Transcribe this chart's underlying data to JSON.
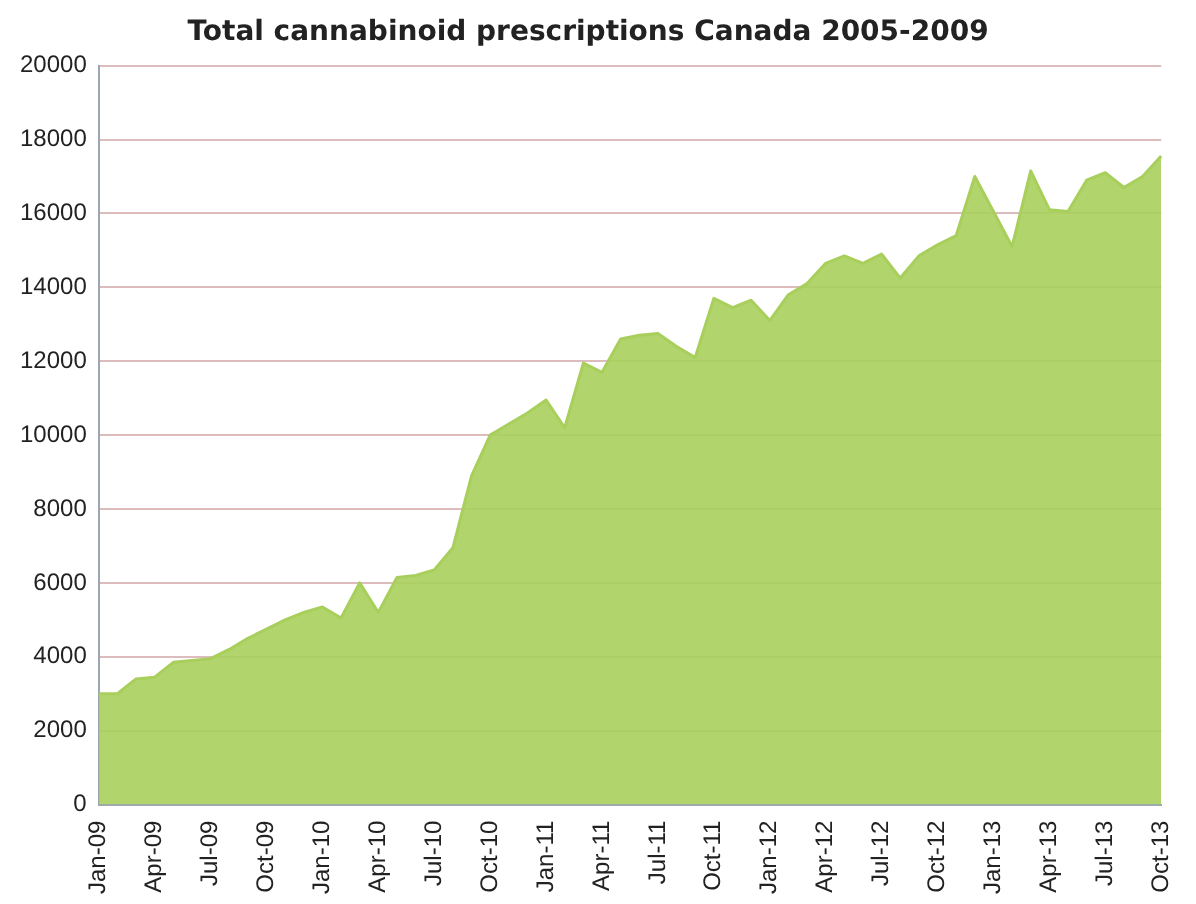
{
  "chart_data": {
    "type": "area",
    "title": "Total cannabinoid prescriptions Canada 2005-2009",
    "categories": [
      "Jan-09",
      null,
      null,
      "Apr-09",
      null,
      null,
      "Jul-09",
      null,
      null,
      "Oct-09",
      null,
      null,
      "Jan-10",
      null,
      null,
      "Apr-10",
      null,
      null,
      "Jul-10",
      null,
      null,
      "Oct-10",
      null,
      null,
      "Jan-11",
      null,
      null,
      "Apr-11",
      null,
      null,
      "Jul-11",
      null,
      null,
      "Oct-11",
      null,
      null,
      "Jan-12",
      null,
      null,
      "Apr-12",
      null,
      null,
      "Jul-12",
      null,
      null,
      "Oct-12",
      null,
      null,
      "Jan-13",
      null,
      null,
      "Apr-13",
      null,
      null,
      "Jul-13",
      null,
      null,
      "Oct-13"
    ],
    "series": [
      {
        "color": "#a8cf5c",
        "values": [
          3000,
          3000,
          3400,
          3450,
          3850,
          3900,
          3950,
          4200,
          4500,
          4750,
          5000,
          5200,
          5350,
          5050,
          6000,
          5200,
          6150,
          6200,
          6350,
          6950,
          8900,
          10000,
          10300,
          10600,
          10950,
          10200,
          11950,
          11700,
          12600,
          12700,
          12750,
          12400,
          12100,
          13700,
          13450,
          13650,
          13100,
          13800,
          14100,
          14650,
          14850,
          14650,
          14900,
          14250,
          14850,
          15150,
          15400,
          17000,
          16050,
          15100,
          17150,
          16100,
          16050,
          16900,
          17100,
          16700,
          17000,
          17550
        ]
      }
    ],
    "ylim": [
      0,
      20000
    ],
    "yticks": [
      0,
      2000,
      4000,
      6000,
      8000,
      10000,
      12000,
      14000,
      16000,
      18000,
      20000
    ],
    "grid": "y"
  }
}
